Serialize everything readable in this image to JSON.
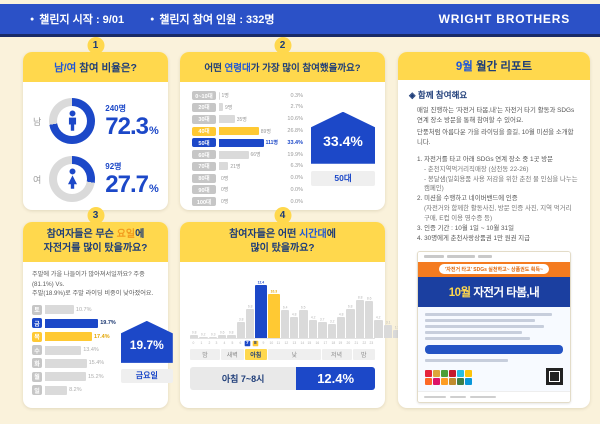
{
  "topbar": {
    "bullet": "●",
    "start": "챌린지 시작 : 9/01",
    "participants": "챌린지 참여 인원 : 332명",
    "brand": "WRIGHT BROTHERS"
  },
  "gender": {
    "badge": "1",
    "title_hl": "남/여",
    "title_rest": " 참여 비율은?",
    "male": {
      "label": "남",
      "count": "240명",
      "pct": "72.3",
      "unit": "%"
    },
    "female": {
      "label": "여",
      "count": "92명",
      "pct": "27.7",
      "unit": "%"
    }
  },
  "age": {
    "badge": "2",
    "title_pre": "어떤 ",
    "title_hl": "연령대",
    "title_post": "가 가장 많이 참여했을까요?",
    "callout_pct": "33.4%",
    "callout_label": "50대"
  },
  "weekday": {
    "badge": "3",
    "title_line1_pre": "참여자들은 무슨 ",
    "title_line1_hl": "요일",
    "title_line1_post": "에",
    "title_line2": "자전거를 많이 탔을까요?",
    "desc_1": "주말에 가을 나들이가 많아져서일까요? 주중(81.1%) Vs.",
    "desc_2": "주말(18.9%)로 주말 라이딩 비중이 낮아졌어요.",
    "callout_pct": "19.7%",
    "callout_label": "금요일"
  },
  "hours": {
    "badge": "4",
    "title_line1_pre": "참여자들은 어떤 ",
    "title_line1_hl": "시간대",
    "title_line1_post": "에",
    "title_line2": "많이 탔을까요?",
    "answer_label": "아침 7~8시",
    "answer_pct": "12.4%"
  },
  "report": {
    "title_hl": "9월",
    "title_rest": " 월간 리포트",
    "bullet": "◈",
    "section_title": "함께 참여해요",
    "p1": "매일 진행하는 '자전거 타봄,내'는 자전거 타기 활동과 SDGs 연계 장소 방문을 통해 참여할 수 있어요.",
    "p2": "단풍처럼 아름다운 가을 라이딩을 즐길, 10월 미션을 소개합니다.",
    "list": [
      "1. 자전거를 타고 아래 SDGs 연계 장소 중 1곳 방문",
      "- 춘천지역먹거리직매장 (삼천동 22-26)",
      "- 봉달샘(일회용품 사용 저감을 위한 춘천 물 인심을 나누는 캠페인)",
      "2. 미션을 수행하고 네이버밴드에 인증",
      "(자전거와 함께한 활동사진, 방문 인증 사진, 지역 먹거리 구매, E컵 이용 영수증 등)",
      "3. 인증 기간 : 10월 1일 ~ 10월 31일",
      "4. 30명에게 춘천사랑상품권 1만 원권 지급"
    ],
    "poster": {
      "ribbon": "'자전거 타고' SDGs 실천하고~ 상품권도 획득~",
      "title_hl": "10월",
      "title_rest": " 자전거 타봄,내"
    }
  },
  "colors": {
    "accent_blue": "#1C48C8",
    "highlight_yellow": "#FFC933",
    "bar_gray": "#DADADA",
    "chip_gray": "#C6C6C6",
    "header_yellow": "#FFD84D",
    "topbar_blue": "#2B51C7",
    "navy": "#1D3C78",
    "poster_orange": "#F47B20",
    "poster_blue": "#1B3FA0",
    "sdgs_colors": [
      "#E5243B",
      "#DDA63A",
      "#4C9F38",
      "#C5192D",
      "#26BDE2",
      "#FCC30B",
      "#FD6925",
      "#DD1367",
      "#FD9D24",
      "#BF8B2E",
      "#3F7E44",
      "#0A97D9"
    ]
  },
  "chart_data": [
    {
      "type": "pie",
      "title": "남/여 참여 비율은?",
      "categories": [
        "남",
        "여"
      ],
      "values": [
        72.3,
        27.7
      ],
      "counts": [
        240,
        92
      ],
      "unit": "%"
    },
    {
      "type": "bar",
      "orientation": "horizontal",
      "title": "어떤 연령대가 가장 많이 참여했을까요?",
      "categories": [
        "0~10대",
        "20대",
        "30대",
        "40대",
        "50대",
        "60대",
        "70대",
        "80대",
        "90대",
        "100대"
      ],
      "values": [
        0.3,
        2.7,
        10.6,
        26.8,
        33.4,
        19.9,
        6.3,
        0.0,
        0.0,
        0.0
      ],
      "counts": [
        "1명",
        "9명",
        "35명",
        "89명",
        "111명",
        "66명",
        "21명",
        "0명",
        "0명",
        "0명"
      ],
      "highlight": {
        "blue": "50대",
        "yellow": "40대"
      },
      "callout": {
        "value": "33.4%",
        "label": "50대"
      },
      "xlim": [
        0,
        35
      ]
    },
    {
      "type": "bar",
      "orientation": "horizontal",
      "title": "참여자들은 무슨 요일에 자전거를 많이 탔을까요?",
      "categories": [
        "토",
        "금",
        "목",
        "수",
        "화",
        "월",
        "일"
      ],
      "values": [
        10.7,
        19.7,
        17.4,
        13.4,
        15.4,
        15.2,
        8.2
      ],
      "highlight": {
        "blue": "금",
        "yellow": "목"
      },
      "callout": {
        "value": "19.7%",
        "label": "금요일"
      },
      "note": "주중 81.1% vs 주말 18.9%",
      "xlim": [
        0,
        20
      ]
    },
    {
      "type": "bar",
      "orientation": "vertical",
      "title": "참여자들은 어떤 시간대에 많이 탔을까요?",
      "x": [
        0,
        1,
        2,
        3,
        4,
        5,
        6,
        7,
        8,
        9,
        10,
        11,
        12,
        13,
        14,
        15,
        16,
        17,
        18,
        19,
        20,
        21,
        22,
        23
      ],
      "values": [
        0.8,
        0.2,
        0.3,
        0.6,
        0.8,
        3.8,
        6.8,
        12.4,
        10.3,
        6.4,
        4.8,
        6.5,
        4.2,
        3.7,
        3.2,
        4.8,
        6.8,
        8.8,
        8.6,
        4.2,
        3.1,
        1.9,
        1.2,
        1.0
      ],
      "highlight": {
        "blue": 7,
        "yellow": 8
      },
      "bands": [
        {
          "label": "밤",
          "from": 0,
          "to": 3
        },
        {
          "label": "새벽",
          "from": 4,
          "to": 6
        },
        {
          "label": "아침",
          "from": 7,
          "to": 9,
          "highlight": true
        },
        {
          "label": "낮",
          "from": 10,
          "to": 16
        },
        {
          "label": "저녁",
          "from": 17,
          "to": 20
        },
        {
          "label": "밤",
          "from": 21,
          "to": 23
        }
      ],
      "callout": {
        "label": "아침 7~8시",
        "value": "12.4%"
      },
      "ylim": [
        0,
        13
      ]
    }
  ]
}
